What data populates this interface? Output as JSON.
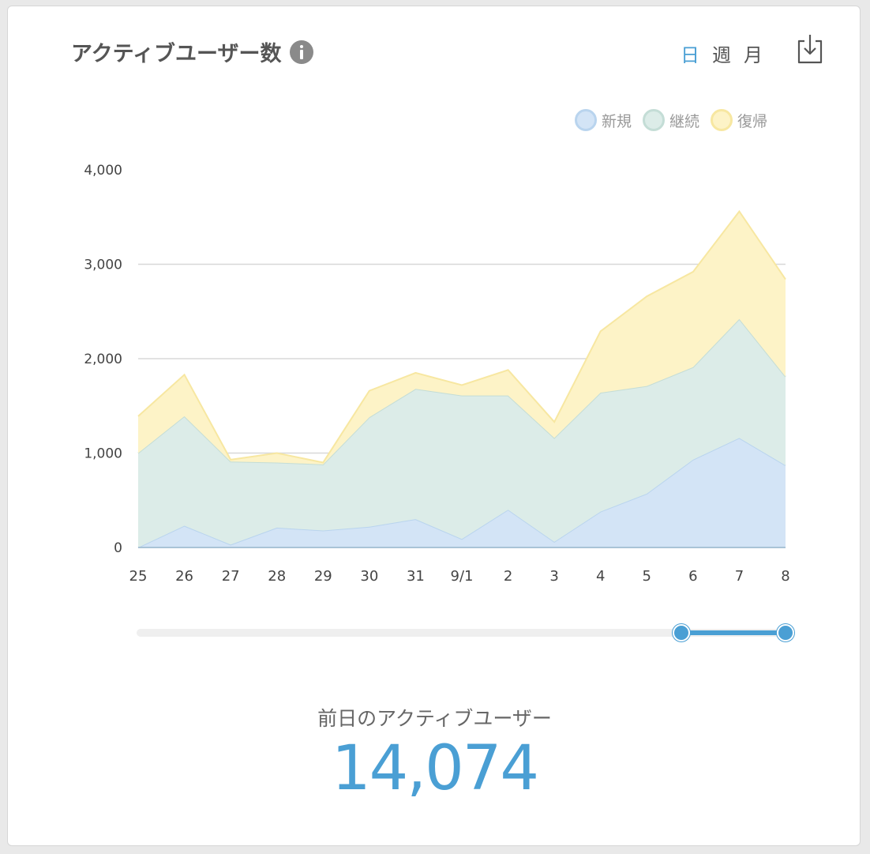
{
  "header": {
    "title": "アクティブユーザー数",
    "info_icon": "info-icon",
    "period_tabs": [
      {
        "label": "日",
        "active": true
      },
      {
        "label": "週",
        "active": false
      },
      {
        "label": "月",
        "active": false
      }
    ],
    "download_icon": "download-icon"
  },
  "summary": {
    "label": "前日のアクティブユーザー",
    "value": "14,074"
  },
  "slider": {
    "range_start": 0.84,
    "range_end": 1.0
  },
  "colors": {
    "accent": "#4a9fd4",
    "new_fill": "#d3e4f6",
    "new_line": "#b9d4ee",
    "cont_fill": "#dcece8",
    "cont_line": "#c4ddd6",
    "ret_fill": "#fdf3c7",
    "ret_line": "#f7e7a1"
  },
  "chart_data": {
    "type": "area",
    "stacked": true,
    "categories": [
      "25",
      "26",
      "27",
      "28",
      "29",
      "30",
      "31",
      "9/1",
      "2",
      "3",
      "4",
      "5",
      "6",
      "7",
      "8"
    ],
    "ylim": [
      0,
      4000
    ],
    "yticks": [
      "0",
      "1,000",
      "2,000",
      "3,000",
      "4,000"
    ],
    "ytick_values": [
      0,
      1000,
      2000,
      3000,
      4000
    ],
    "grid": true,
    "legend_position": "top-right",
    "series": [
      {
        "name": "新規",
        "color_key": "new",
        "values": [
          0,
          230,
          30,
          210,
          180,
          220,
          300,
          90,
          400,
          60,
          380,
          570,
          930,
          1160,
          870
        ]
      },
      {
        "name": "継続",
        "color_key": "cont",
        "values": [
          1000,
          1160,
          880,
          690,
          700,
          1160,
          1380,
          1520,
          1210,
          1100,
          1260,
          1140,
          980,
          1260,
          940
        ]
      },
      {
        "name": "復帰",
        "color_key": "ret",
        "values": [
          390,
          440,
          20,
          100,
          20,
          280,
          170,
          110,
          270,
          170,
          650,
          950,
          1010,
          1140,
          1030
        ]
      }
    ]
  }
}
